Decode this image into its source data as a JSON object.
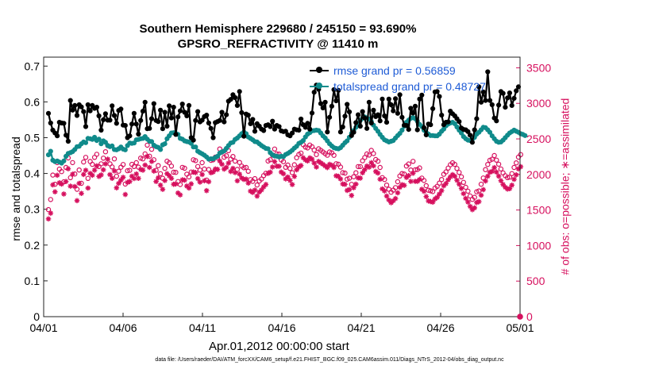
{
  "figure": {
    "title_line1": "Southern Hemisphere 229680 / 245150 = 93.690%",
    "title_line2": "GPSRO_REFRACTIVITY @ 11410 m",
    "footnote": "data file: /Users/raeder/DAI/ATM_forcXX/CAM6_setup/f.e21.FHIST_BGC.f09_025.CAM6assim.011/Diags_NTrS_2012-04/obs_diag_output.nc"
  },
  "chart_data": {
    "type": "line",
    "xlabel": "Apr.01,2012 00:00:00 start",
    "ylabel_left": "rmse and totalspread",
    "ylabel_right": "# of obs: o=possible; ∗=assimilated",
    "x_range": [
      "04/01",
      "05/01"
    ],
    "x_ticks": [
      "04/01",
      "04/06",
      "04/11",
      "04/16",
      "04/21",
      "04/26",
      "05/01"
    ],
    "y_left_ticks": [
      "0",
      "0.1",
      "0.2",
      "0.3",
      "0.4",
      "0.5",
      "0.6",
      "0.7"
    ],
    "y_left_range": [
      0,
      0.725
    ],
    "y_right_ticks": [
      "0",
      "500",
      "1000",
      "1500",
      "2000",
      "2500",
      "3000",
      "3500"
    ],
    "y_right_range": [
      0,
      3650
    ],
    "grid": false,
    "legend": "top-right",
    "colors": {
      "rmse": "#000000",
      "spread": "#108b8b",
      "obs": "#d6105e",
      "legend_text": "#1f5cd6"
    },
    "series": [
      {
        "name": "rmse grand pr = 0.56859",
        "axis": "left",
        "color": "#000000",
        "values": [
          0.568,
          0.541,
          0.521,
          0.513,
          0.505,
          0.543,
          0.541,
          0.54,
          0.507,
          0.49,
          0.604,
          0.577,
          0.59,
          0.562,
          0.592,
          0.586,
          0.573,
          0.531,
          0.592,
          0.575,
          0.59,
          0.582,
          0.585,
          0.561,
          0.521,
          0.55,
          0.567,
          0.549,
          0.549,
          0.589,
          0.562,
          0.54,
          0.576,
          0.58,
          0.535,
          0.534,
          0.5,
          0.505,
          0.538,
          0.568,
          0.538,
          0.51,
          0.548,
          0.574,
          0.599,
          0.525,
          0.526,
          0.553,
          0.595,
          0.548,
          0.545,
          0.577,
          0.525,
          0.571,
          0.532,
          0.589,
          0.555,
          0.585,
          0.509,
          0.558,
          0.575,
          0.594,
          0.571,
          0.561,
          0.59,
          0.5,
          0.493,
          0.548,
          0.573,
          0.544,
          0.549,
          0.559,
          0.563,
          0.541,
          0.526,
          0.5,
          0.542,
          0.545,
          0.548,
          0.571,
          0.544,
          0.564,
          0.602,
          0.607,
          0.62,
          0.612,
          0.59,
          0.629,
          0.57,
          0.504,
          0.566,
          0.563,
          0.539,
          0.551,
          0.518,
          0.539,
          0.532,
          0.524,
          0.52,
          0.534,
          0.536,
          0.531,
          0.546,
          0.524,
          0.534,
          0.531,
          0.519,
          0.517,
          0.518,
          0.508,
          0.505,
          0.513,
          0.524,
          0.522,
          0.521,
          0.552,
          0.536,
          0.529,
          0.54,
          0.524,
          0.569,
          0.627,
          0.647,
          0.635,
          0.595,
          0.583,
          0.599,
          0.516,
          0.557,
          0.588,
          0.634,
          0.603,
          0.632,
          0.516,
          0.53,
          0.56,
          0.593,
          0.572,
          0.506,
          0.515,
          0.542,
          0.564,
          0.532,
          0.573,
          0.555,
          0.526,
          0.599,
          0.541,
          0.577,
          0.559,
          0.564,
          0.547,
          0.608,
          0.561,
          0.543,
          0.608,
          0.592,
          0.575,
          0.609,
          0.568,
          0.62,
          0.557,
          0.535,
          0.534,
          0.523,
          0.582,
          0.569,
          0.588,
          0.522,
          0.608,
          0.619,
          0.528,
          0.508,
          0.538,
          0.536,
          0.581,
          0.628,
          0.629,
          0.615,
          0.563,
          0.536,
          0.543,
          0.544,
          0.574,
          0.567,
          0.561,
          0.553,
          0.545,
          0.527,
          0.523,
          0.522,
          0.517,
          0.507,
          0.487,
          0.522,
          0.553,
          0.642,
          0.599,
          0.628,
          0.604,
          0.684,
          0.604,
          0.592,
          0.555,
          0.547,
          0.591,
          0.629,
          0.624,
          0.585,
          0.611,
          0.625,
          0.59,
          0.61,
          0.631,
          0.642
        ]
      },
      {
        "name": "totalspread grand pr = 0.48727",
        "axis": "left",
        "color": "#108b8b",
        "values": [
          0.452,
          0.462,
          0.437,
          0.433,
          0.435,
          0.432,
          0.429,
          0.435,
          0.448,
          0.456,
          0.458,
          0.461,
          0.467,
          0.475,
          0.476,
          0.483,
          0.488,
          0.486,
          0.498,
          0.497,
          0.495,
          0.501,
          0.492,
          0.496,
          0.483,
          0.491,
          0.487,
          0.478,
          0.475,
          0.477,
          0.467,
          0.466,
          0.469,
          0.474,
          0.468,
          0.466,
          0.478,
          0.485,
          0.484,
          0.485,
          0.494,
          0.495,
          0.497,
          0.498,
          0.503,
          0.496,
          0.49,
          0.489,
          0.479,
          0.475,
          0.473,
          0.467,
          0.48,
          0.483,
          0.497,
          0.505,
          0.513,
          0.514,
          0.512,
          0.509,
          0.498,
          0.496,
          0.491,
          0.489,
          0.488,
          0.484,
          0.474,
          0.474,
          0.462,
          0.458,
          0.455,
          0.451,
          0.446,
          0.44,
          0.441,
          0.441,
          0.445,
          0.448,
          0.457,
          0.46,
          0.463,
          0.47,
          0.478,
          0.485,
          0.487,
          0.495,
          0.499,
          0.505,
          0.511,
          0.516,
          0.511,
          0.502,
          0.498,
          0.494,
          0.489,
          0.488,
          0.483,
          0.478,
          0.474,
          0.47,
          0.469,
          0.458,
          0.452,
          0.449,
          0.448,
          0.446,
          0.448,
          0.447,
          0.453,
          0.456,
          0.46,
          0.465,
          0.471,
          0.476,
          0.484,
          0.487,
          0.492,
          0.502,
          0.51,
          0.514,
          0.519,
          0.52,
          0.521,
          0.52,
          0.513,
          0.505,
          0.499,
          0.491,
          0.483,
          0.477,
          0.472,
          0.47,
          0.469,
          0.472,
          0.479,
          0.486,
          0.491,
          0.501,
          0.512,
          0.52,
          0.529,
          0.538,
          0.548,
          0.554,
          0.558,
          0.555,
          0.552,
          0.545,
          0.535,
          0.526,
          0.518,
          0.509,
          0.501,
          0.494,
          0.491,
          0.488,
          0.49,
          0.492,
          0.499,
          0.506,
          0.512,
          0.521,
          0.532,
          0.543,
          0.549,
          0.554,
          0.556,
          0.553,
          0.546,
          0.537,
          0.531,
          0.521,
          0.515,
          0.51,
          0.506,
          0.506,
          0.505,
          0.505,
          0.51,
          0.518,
          0.524,
          0.533,
          0.538,
          0.541,
          0.543,
          0.539,
          0.53,
          0.521,
          0.513,
          0.503,
          0.497,
          0.493,
          0.492,
          0.496,
          0.501,
          0.51,
          0.515,
          0.522,
          0.529,
          0.528,
          0.522,
          0.515,
          0.505,
          0.497,
          0.49,
          0.487,
          0.488,
          0.493,
          0.5,
          0.507,
          0.513,
          0.517,
          0.521,
          0.518,
          0.515,
          0.511,
          0.509,
          0.506
        ]
      },
      {
        "name": "obs possible",
        "axis": "right",
        "color": "#d6105e",
        "marker": "o",
        "values": [
          1506,
          1647,
          1991,
          1862,
          2167,
          2075,
          2040,
          1896,
          2098,
          2232,
          1954,
          2167,
          2007,
          1792,
          2063,
          1875,
          2176,
          2240,
          1944,
          2182,
          2142,
          2240,
          2284,
          2111,
          2150,
          2229,
          2319,
          2405,
          2149,
          2106,
          2219,
          1976,
          2046,
          2102,
          2140,
          1865,
          2053,
          2058,
          2142,
          2112,
          2165,
          2103,
          2230,
          2219,
          2289,
          2412,
          2257,
          2354,
          2207,
          2058,
          2124,
          2010,
          1947,
          2086,
          2187,
          2164,
          2118,
          2031,
          2029,
          1900,
          1859,
          2100,
          2087,
          2004,
          1966,
          2034,
          2207,
          2194,
          2112,
          2062,
          2166,
          2076,
          1921,
          2070,
          2198,
          2206,
          2245,
          2236,
          2359,
          2314,
          2242,
          2264,
          2335,
          2216,
          2253,
          2188,
          2071,
          2169,
          2118,
          2094,
          2099,
          2045,
          1928,
          1903,
          1941,
          1852,
          1908,
          1935,
          1983,
          2017,
          2189,
          2207,
          2271,
          2357,
          2289,
          2286,
          2204,
          2180,
          2101,
          2132,
          2084,
          2025,
          2136,
          2236,
          2282,
          2301,
          2418,
          2385,
          2373,
          2413,
          2390,
          2343,
          2280,
          2361,
          2340,
          2316,
          2293,
          2270,
          2316,
          2304,
          2269,
          2151,
          2143,
          2104,
          2026,
          2019,
          1934,
          1947,
          1861,
          1968,
          2024,
          2111,
          2111,
          2192,
          2238,
          2288,
          2273,
          2338,
          2294,
          2210,
          2187,
          2099,
          1956,
          1929,
          1851,
          1792,
          1750,
          1779,
          1815,
          1898,
          1978,
          2013,
          2006,
          2119,
          2148,
          2063,
          2184,
          2066,
          2069,
          2092,
          1949,
          1915,
          1842,
          1778,
          1769,
          1759,
          1809,
          1833,
          1879,
          1929,
          2002,
          2036,
          2089,
          2136,
          2164,
          2142,
          2084,
          2028,
          1967,
          1889,
          1819,
          1765,
          1698,
          1650,
          1679,
          1756,
          1768,
          1863,
          1950,
          2068,
          2141,
          2200,
          2215,
          2266,
          2201,
          2144,
          2077,
          2022,
          1982,
          1956,
          1962,
          2011,
          2098,
          2163,
          2244,
          2279
        ]
      },
      {
        "name": "obs assimilated",
        "axis": "right",
        "color": "#d6105e",
        "marker": "*",
        "values": [
          1375,
          1455,
          1854,
          1756,
          1989,
          1883,
          1864,
          1726,
          1901,
          2080,
          1835,
          2002,
          1831,
          1632,
          1875,
          1734,
          2000,
          2059,
          1808,
          2015,
          1989,
          2061,
          2122,
          1972,
          1993,
          2066,
          2149,
          2214,
          1998,
          1946,
          2050,
          1812,
          1875,
          1919,
          1960,
          1718,
          1889,
          1901,
          1975,
          1942,
          2007,
          1945,
          2072,
          2061,
          2132,
          2252,
          2099,
          2183,
          2047,
          1901,
          1952,
          1849,
          1790,
          1914,
          2011,
          1983,
          1946,
          1862,
          1866,
          1739,
          1712,
          1924,
          1919,
          1837,
          1809,
          1867,
          2034,
          2027,
          1941,
          1892,
          1999,
          1911,
          1772,
          1899,
          2024,
          2035,
          2077,
          2072,
          2189,
          2143,
          2075,
          2100,
          2160,
          2042,
          2085,
          2026,
          1911,
          2005,
          1951,
          1930,
          1934,
          1879,
          1766,
          1747,
          1780,
          1695,
          1753,
          1781,
          1825,
          1860,
          2016,
          2033,
          2105,
          2180,
          2116,
          2115,
          2034,
          2010,
          1937,
          1964,
          1917,
          1858,
          1972,
          2065,
          2106,
          2125,
          2235,
          2205,
          2190,
          2233,
          2214,
          2160,
          2104,
          2183,
          2163,
          2143,
          2119,
          2096,
          2142,
          2129,
          2097,
          1981,
          1974,
          1937,
          1866,
          1861,
          1776,
          1788,
          1705,
          1813,
          1864,
          1951,
          1949,
          2024,
          2068,
          2117,
          2103,
          2167,
          2121,
          2041,
          2019,
          1933,
          1797,
          1768,
          1696,
          1641,
          1602,
          1629,
          1661,
          1742,
          1819,
          1856,
          1846,
          1958,
          1984,
          1902,
          2017,
          1903,
          1904,
          1929,
          1791,
          1762,
          1689,
          1627,
          1620,
          1611,
          1657,
          1678,
          1724,
          1773,
          1841,
          1872,
          1925,
          1967,
          1998,
          1975,
          1918,
          1863,
          1804,
          1730,
          1663,
          1612,
          1550,
          1505,
          1530,
          1605,
          1617,
          1708,
          1787,
          1908,
          1975,
          2031,
          2044,
          2096,
          2034,
          1977,
          1912,
          1859,
          1820,
          1795,
          1801,
          1849,
          1932,
          1995,
          2078,
          2108
        ]
      }
    ]
  }
}
